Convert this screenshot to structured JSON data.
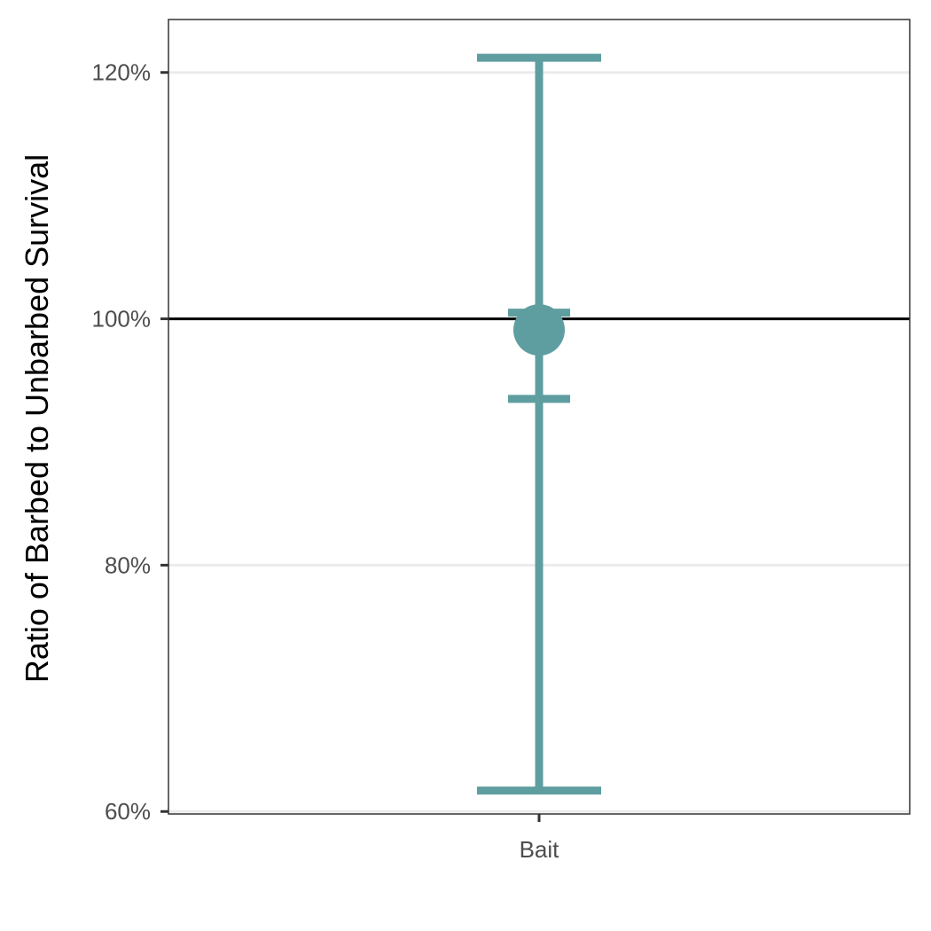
{
  "chart_data": {
    "type": "errorbar",
    "title": "",
    "xlabel": "",
    "ylabel": "Ratio of Barbed to Unbarbed Survival",
    "categories": [
      "Bait"
    ],
    "ylim": [
      0.598,
      1.243
    ],
    "yticks": [
      0.6,
      0.8,
      1.0,
      1.2
    ],
    "ytick_labels": [
      "60%",
      "80%",
      "100%",
      "120%"
    ],
    "grid": "horizontal major only",
    "reference_line": {
      "y": 1.0,
      "color": "#000000"
    },
    "series": [
      {
        "category": "Bait",
        "estimate": 0.991,
        "ci_outer": [
          0.617,
          1.212
        ],
        "ci_inner": [
          0.935,
          1.005
        ]
      }
    ],
    "colors": {
      "series": "#5f9ea0",
      "grid": "#ebebeb",
      "panel_border": "#333333",
      "reference": "#000000"
    }
  }
}
